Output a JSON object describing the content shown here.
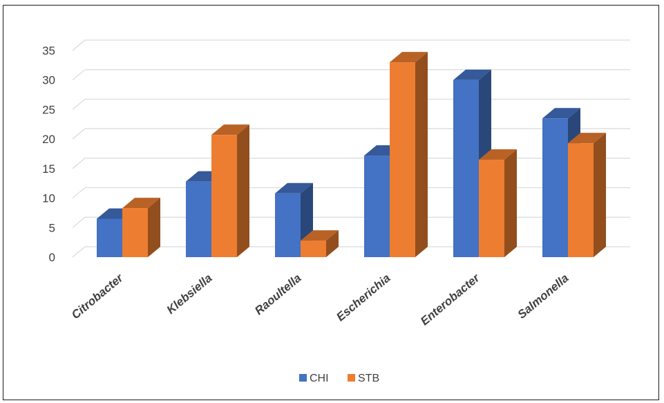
{
  "chart_data": {
    "type": "bar",
    "title": "",
    "xlabel": "",
    "ylabel": "",
    "categories": [
      "Citrobacter",
      "Klebsiella",
      "Raoultella",
      "Escherichia",
      "Enterobacter",
      "Salmonella"
    ],
    "series": [
      {
        "name": "CHI",
        "color": "#4472C4",
        "values": [
          6.5,
          12.8,
          10.8,
          17.2,
          30,
          23.5
        ]
      },
      {
        "name": "STB",
        "color": "#ED7D31",
        "values": [
          8.3,
          20.7,
          2.8,
          33,
          16.5,
          19.3
        ]
      }
    ],
    "ylim": [
      0,
      35
    ],
    "yticks": [
      0,
      5,
      10,
      15,
      20,
      25,
      30,
      35
    ],
    "grid": true,
    "three_d": true,
    "legend": "bottom-center"
  }
}
